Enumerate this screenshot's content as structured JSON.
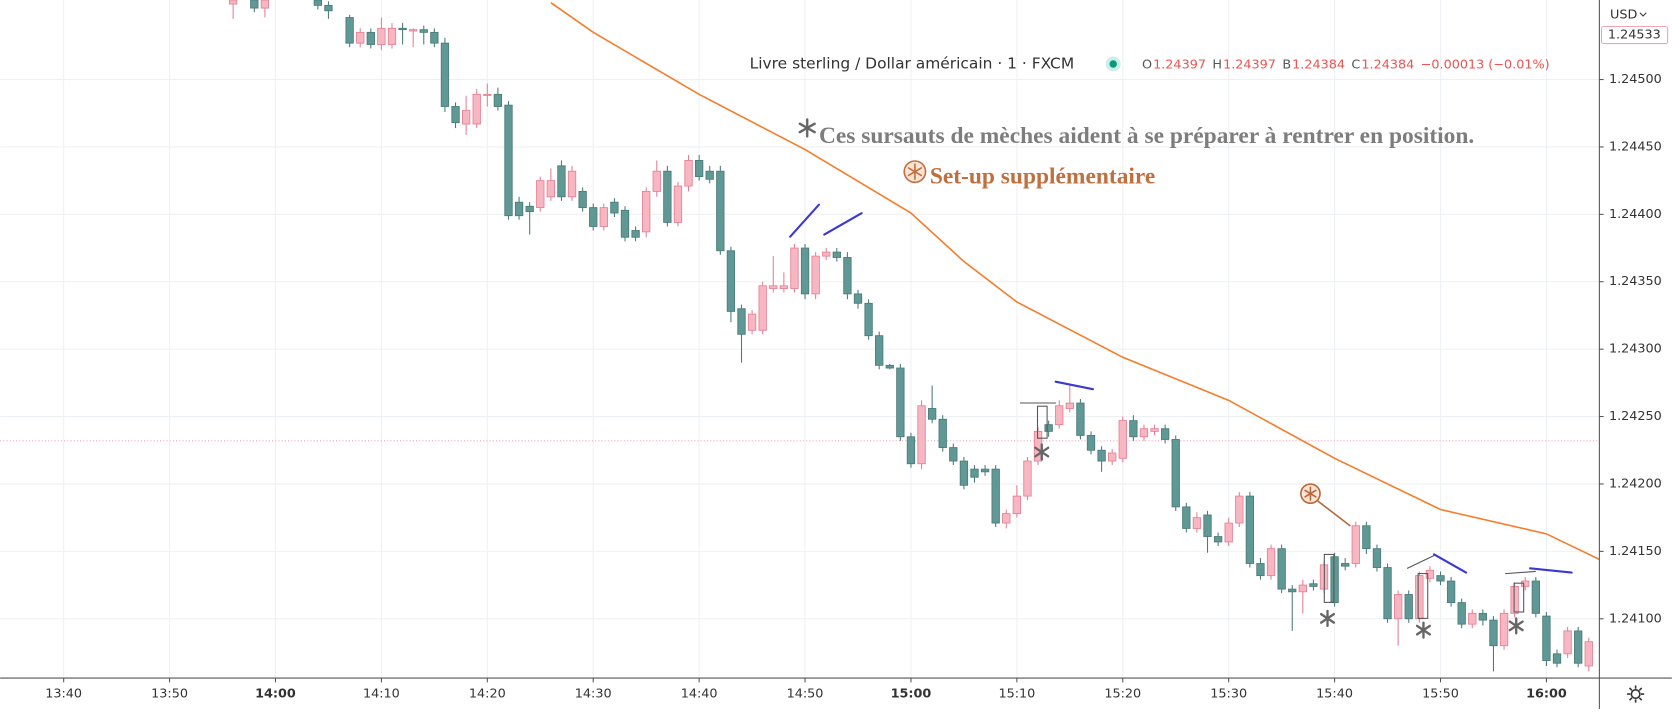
{
  "chart_data": {
    "type": "candlestick",
    "symbol_title": "Livre sterling / Dollar américain · 1 · FXCM",
    "ohlc_legend": [
      {
        "key": "O",
        "value": "1.24397"
      },
      {
        "key": "H",
        "value": "1.24397"
      },
      {
        "key": "B",
        "value": "1.24384"
      },
      {
        "key": "C",
        "value": "1.24384"
      }
    ],
    "change": "−0.00013 (−0.01%)",
    "currency": "USD",
    "annotations": [
      "Ces sursauts de mèches aident à se préparer à rentrer en position.",
      "Set-up supplémentaire"
    ],
    "up_color": "#f7b7c2",
    "up_border": "#e77f93",
    "down_color": "#5f9894",
    "down_border": "#4b7c78",
    "x": [
      "13:56",
      "13:58",
      "13:59",
      "14:04",
      "14:05",
      "14:07",
      "14:08",
      "14:09",
      "14:10",
      "14:11",
      "14:12",
      "14:13",
      "14:14",
      "14:15",
      "14:16",
      "14:17",
      "14:18",
      "14:19",
      "14:20",
      "14:21",
      "14:22",
      "14:23",
      "14:24",
      "14:25",
      "14:26",
      "14:27",
      "14:28",
      "14:29",
      "14:30",
      "14:31",
      "14:32",
      "14:33",
      "14:34",
      "14:35",
      "14:36",
      "14:37",
      "14:38",
      "14:39",
      "14:40",
      "14:41",
      "14:42",
      "14:43",
      "14:44",
      "14:45",
      "14:46",
      "14:47",
      "14:48",
      "14:49",
      "14:50",
      "14:51",
      "14:52",
      "14:53",
      "14:54",
      "14:55",
      "14:56",
      "14:57",
      "14:58",
      "14:59",
      "15:00",
      "15:01",
      "15:02",
      "15:03",
      "15:04",
      "15:05",
      "15:06",
      "15:07",
      "15:08",
      "15:09",
      "15:10",
      "15:11",
      "15:12",
      "15:13",
      "15:14",
      "15:15",
      "15:16",
      "15:17",
      "15:18",
      "15:19",
      "15:20",
      "15:21",
      "15:22",
      "15:23",
      "15:24",
      "15:25",
      "15:26",
      "15:27",
      "15:28",
      "15:29",
      "15:30",
      "15:31",
      "15:32",
      "15:33",
      "15:34",
      "15:35",
      "15:36",
      "15:37",
      "15:38",
      "15:39",
      "15:40",
      "15:41",
      "15:42",
      "15:43",
      "15:44",
      "15:45",
      "15:46",
      "15:47",
      "15:48",
      "15:49",
      "15:50",
      "15:51",
      "15:52",
      "15:53",
      "15:54",
      "15:55",
      "15:56",
      "15:57",
      "15:58",
      "15:59",
      "16:00",
      "16:01",
      "16:02",
      "16:03",
      "16:04"
    ],
    "open": [
      1.24556,
      1.24559,
      1.24553,
      1.24559,
      1.24555,
      1.24546,
      1.24527,
      1.24535,
      1.24526,
      1.24526,
      1.24538,
      1.24536,
      1.24537,
      1.24535,
      1.24527,
      1.2448,
      1.24467,
      1.24467,
      1.24489,
      1.24489,
      1.24481,
      1.24409,
      1.24406,
      1.24405,
      1.24413,
      1.24436,
      1.24413,
      1.24417,
      1.24405,
      1.24391,
      1.24409,
      1.24403,
      1.24388,
      1.24387,
      1.24417,
      1.24432,
      1.24394,
      1.24421,
      1.2444,
      1.24432,
      1.24432,
      1.24373,
      1.2433,
      1.24314,
      1.24314,
      1.24345,
      1.24345,
      1.24345,
      1.24375,
      1.24341,
      1.24369,
      1.24372,
      1.24368,
      1.24341,
      1.24334,
      1.2431,
      1.24288,
      1.24286,
      1.24235,
      1.24215,
      1.24256,
      1.24248,
      1.24227,
      1.24217,
      1.24211,
      1.24211,
      1.24211,
      1.24171,
      1.24178,
      1.24191,
      1.24217,
      1.24244,
      1.24244,
      1.24256,
      1.2426,
      1.24236,
      1.24225,
      1.24217,
      1.24219,
      1.24247,
      1.24235,
      1.24239,
      1.24241,
      1.24233,
      1.24183,
      1.24167,
      1.24177,
      1.24161,
      1.24157,
      1.24171,
      1.24191,
      1.24141,
      1.24132,
      1.24152,
      1.24122,
      1.2412,
      1.24126,
      1.24122,
      1.24146,
      1.24141,
      1.24141,
      1.24169,
      1.24152,
      1.24138,
      1.241,
      1.24118,
      1.241,
      1.2413,
      1.24132,
      1.24128,
      1.24112,
      1.24096,
      1.24104,
      1.24099,
      1.2408,
      1.24104,
      1.24124,
      1.24128,
      1.24102,
      1.24074,
      1.24074,
      1.24091,
      1.24065
    ],
    "high": [
      1.24563,
      1.24563,
      1.24562,
      1.24562,
      1.24558,
      1.24548,
      1.24538,
      1.24538,
      1.24546,
      1.24542,
      1.24542,
      1.24538,
      1.2454,
      1.24538,
      1.24531,
      1.24483,
      1.24488,
      1.24493,
      1.24497,
      1.24494,
      1.24484,
      1.24413,
      1.24409,
      1.24428,
      1.24434,
      1.2444,
      1.24436,
      1.2442,
      1.24408,
      1.24408,
      1.24412,
      1.24406,
      1.24391,
      1.2442,
      1.2444,
      1.24436,
      1.24424,
      1.24444,
      1.24444,
      1.24436,
      1.24436,
      1.24376,
      1.24333,
      1.24329,
      1.2435,
      1.24369,
      1.24357,
      1.24378,
      1.24378,
      1.24372,
      1.24375,
      1.24375,
      1.24372,
      1.24344,
      1.24337,
      1.24313,
      1.24289,
      1.24289,
      1.24238,
      1.24262,
      1.24273,
      1.24251,
      1.2423,
      1.2422,
      1.24214,
      1.24214,
      1.24214,
      1.24181,
      1.24199,
      1.2422,
      1.24242,
      1.24247,
      1.24262,
      1.24273,
      1.24263,
      1.24239,
      1.24228,
      1.24226,
      1.2425,
      1.24251,
      1.24244,
      1.24244,
      1.24244,
      1.24236,
      1.24186,
      1.24179,
      1.2418,
      1.24164,
      1.24175,
      1.24194,
      1.24194,
      1.24145,
      1.24155,
      1.24155,
      1.24125,
      1.24129,
      1.24129,
      1.24143,
      1.24149,
      1.24145,
      1.24172,
      1.24172,
      1.24155,
      1.24141,
      1.24121,
      1.24121,
      1.24135,
      1.24139,
      1.24135,
      1.24131,
      1.24115,
      1.24107,
      1.24107,
      1.24102,
      1.24107,
      1.24127,
      1.24131,
      1.24131,
      1.24105,
      1.24077,
      1.24094,
      1.24094,
      1.24086
    ],
    "low": [
      1.24545,
      1.2455,
      1.24546,
      1.24552,
      1.24545,
      1.24524,
      1.24524,
      1.24523,
      1.24522,
      1.24523,
      1.24526,
      1.24524,
      1.24526,
      1.24524,
      1.24476,
      1.24464,
      1.24459,
      1.24464,
      1.2448,
      1.24477,
      1.24396,
      1.24396,
      1.24385,
      1.24402,
      1.2441,
      1.2441,
      1.2441,
      1.24402,
      1.24388,
      1.24388,
      1.24398,
      1.2438,
      1.2438,
      1.24383,
      1.24413,
      1.24391,
      1.24391,
      1.24417,
      1.24425,
      1.24423,
      1.2437,
      1.2432,
      1.2429,
      1.24311,
      1.24311,
      1.24342,
      1.24342,
      1.24342,
      1.24337,
      1.24337,
      1.24366,
      1.24365,
      1.24337,
      1.2433,
      1.24307,
      1.24285,
      1.24285,
      1.24232,
      1.24212,
      1.24211,
      1.24245,
      1.24224,
      1.24214,
      1.24196,
      1.24201,
      1.24206,
      1.24168,
      1.24167,
      1.24175,
      1.24188,
      1.24214,
      1.24235,
      1.24241,
      1.24253,
      1.24233,
      1.24222,
      1.24209,
      1.24214,
      1.24216,
      1.24232,
      1.24232,
      1.24236,
      1.2423,
      1.2418,
      1.24164,
      1.24164,
      1.24149,
      1.24154,
      1.24154,
      1.24168,
      1.24138,
      1.24129,
      1.24129,
      1.24119,
      1.24091,
      1.24104,
      1.24121,
      1.24119,
      1.24109,
      1.24136,
      1.24138,
      1.24148,
      1.24135,
      1.24097,
      1.2408,
      1.24097,
      1.24097,
      1.24127,
      1.24125,
      1.24109,
      1.24093,
      1.24093,
      1.24095,
      1.24061,
      1.24077,
      1.24101,
      1.24121,
      1.24101,
      1.24065,
      1.24064,
      1.24071,
      1.24064,
      1.24061
    ],
    "close": [
      1.24559,
      1.24553,
      1.24559,
      1.24555,
      1.24551,
      1.24527,
      1.24535,
      1.24526,
      1.24538,
      1.24538,
      1.24537,
      1.24537,
      1.24535,
      1.24527,
      1.2448,
      1.24468,
      1.24477,
      1.24489,
      1.24489,
      1.2448,
      1.24399,
      1.24399,
      1.24402,
      1.24425,
      1.24425,
      1.24413,
      1.24432,
      1.24405,
      1.24391,
      1.24405,
      1.24401,
      1.24383,
      1.24383,
      1.24417,
      1.24432,
      1.24394,
      1.24421,
      1.2444,
      1.24428,
      1.24426,
      1.24373,
      1.24328,
      1.24311,
      1.24326,
      1.24347,
      1.24347,
      1.24347,
      1.24375,
      1.24341,
      1.24369,
      1.24372,
      1.24368,
      1.24341,
      1.24334,
      1.2431,
      1.24288,
      1.24286,
      1.24235,
      1.24215,
      1.24258,
      1.24248,
      1.24227,
      1.24217,
      1.24199,
      1.24205,
      1.24209,
      1.24171,
      1.24178,
      1.24191,
      1.24217,
      1.24239,
      1.24239,
      1.24258,
      1.2426,
      1.24236,
      1.24225,
      1.24217,
      1.24223,
      1.24247,
      1.24235,
      1.24241,
      1.24241,
      1.24233,
      1.24183,
      1.24167,
      1.24175,
      1.24161,
      1.24157,
      1.24171,
      1.24191,
      1.24141,
      1.24132,
      1.24152,
      1.24122,
      1.2412,
      1.24125,
      1.24124,
      1.2414,
      1.24112,
      1.24139,
      1.24169,
      1.24152,
      1.24138,
      1.241,
      1.24118,
      1.241,
      1.24132,
      1.24136,
      1.24128,
      1.24112,
      1.24096,
      1.24104,
      1.24099,
      1.2408,
      1.24104,
      1.24124,
      1.24128,
      1.24104,
      1.24069,
      1.24067,
      1.24091,
      1.24067,
      1.24083
    ],
    "moving_average": {
      "color": "#f57c2b",
      "x": [
        "14:26",
        "14:30",
        "14:40",
        "14:50",
        "15:00",
        "15:05",
        "15:10",
        "15:20",
        "15:30",
        "15:40",
        "15:50",
        "16:00",
        "16:05"
      ],
      "values": [
        1.24557,
        1.24535,
        1.24489,
        1.24448,
        1.24401,
        1.24365,
        1.24335,
        1.24294,
        1.24262,
        1.24219,
        1.24181,
        1.24163,
        1.24144
      ]
    },
    "price_line": 1.24232,
    "price_marker": {
      "value": 1.24533,
      "label": "1.24533"
    },
    "xlim": [
      "13:34",
      "16:05"
    ],
    "xticks": [
      "13:40",
      "13:50",
      "14:00",
      "14:10",
      "14:20",
      "14:30",
      "14:40",
      "14:50",
      "15:00",
      "15:10",
      "15:20",
      "15:30",
      "15:40",
      "15:50",
      "16:00"
    ],
    "ylim": [
      1.24056,
      1.24559
    ],
    "yticks": [
      {
        "value": 1.241,
        "label": "1.24100"
      },
      {
        "value": 1.2415,
        "label": "1.24150"
      },
      {
        "value": 1.242,
        "label": "1.24200"
      },
      {
        "value": 1.2425,
        "label": "1.24250"
      },
      {
        "value": 1.243,
        "label": "1.24300"
      },
      {
        "value": 1.2435,
        "label": "1.24350"
      },
      {
        "value": 1.244,
        "label": "1.24400"
      },
      {
        "value": 1.2445,
        "label": "1.24450"
      },
      {
        "value": 1.245,
        "label": "1.24500"
      }
    ],
    "grid": true
  }
}
